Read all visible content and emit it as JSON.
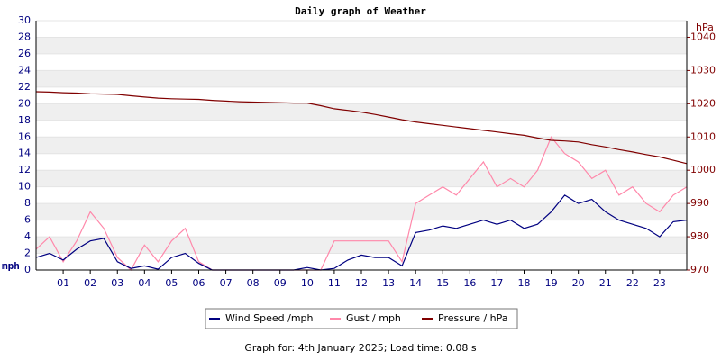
{
  "chart_data": {
    "type": "line",
    "title": "Daily graph of Weather",
    "y_label": "mph",
    "y2_label": "hPa",
    "x": [
      0,
      0.5,
      1,
      1.5,
      2,
      2.5,
      3,
      3.5,
      4,
      4.5,
      5,
      5.5,
      6,
      6.5,
      7,
      7.5,
      8,
      8.5,
      9,
      9.5,
      10,
      10.5,
      11,
      11.5,
      12,
      12.5,
      13,
      13.5,
      14,
      14.5,
      15,
      15.5,
      16,
      16.5,
      17,
      17.5,
      18,
      18.5,
      19,
      19.5,
      20,
      20.5,
      21,
      21.5,
      22,
      22.5,
      23,
      23.5,
      24
    ],
    "xlim": [
      0,
      24
    ],
    "xticks": [
      {
        "value": 1,
        "label": "01"
      },
      {
        "value": 2,
        "label": "02"
      },
      {
        "value": 3,
        "label": "03"
      },
      {
        "value": 4,
        "label": "04"
      },
      {
        "value": 5,
        "label": "05"
      },
      {
        "value": 6,
        "label": "06"
      },
      {
        "value": 7,
        "label": "07"
      },
      {
        "value": 8,
        "label": "08"
      },
      {
        "value": 9,
        "label": "09"
      },
      {
        "value": 10,
        "label": "10"
      },
      {
        "value": 11,
        "label": "11"
      },
      {
        "value": 12,
        "label": "12"
      },
      {
        "value": 13,
        "label": "13"
      },
      {
        "value": 14,
        "label": "14"
      },
      {
        "value": 15,
        "label": "15"
      },
      {
        "value": 16,
        "label": "16"
      },
      {
        "value": 17,
        "label": "17"
      },
      {
        "value": 18,
        "label": "18"
      },
      {
        "value": 19,
        "label": "19"
      },
      {
        "value": 20,
        "label": "20"
      },
      {
        "value": 21,
        "label": "21"
      },
      {
        "value": 22,
        "label": "22"
      },
      {
        "value": 23,
        "label": "23"
      }
    ],
    "ylim": [
      0,
      30
    ],
    "yticks": [
      0,
      2,
      4,
      6,
      8,
      10,
      12,
      14,
      16,
      18,
      20,
      22,
      24,
      26,
      28,
      30
    ],
    "y2lim": [
      970,
      1045
    ],
    "y2ticks": [
      970,
      980,
      990,
      1000,
      1010,
      1020,
      1030,
      1040
    ],
    "grid": true,
    "series": [
      {
        "name": "Wind Speed /mph",
        "color": "#000080",
        "values": [
          1.5,
          2,
          1.2,
          2.5,
          3.5,
          3.8,
          1,
          0.2,
          0.5,
          0.1,
          1.5,
          2,
          0.8,
          0,
          0,
          0,
          0,
          0,
          0,
          0,
          0.3,
          0,
          0.2,
          1.2,
          1.8,
          1.5,
          1.5,
          0.5,
          4.5,
          4.8,
          5.3,
          5,
          5.5,
          6,
          5.5,
          6,
          5,
          5.5,
          7,
          9,
          8,
          8.5,
          7,
          6,
          5.5,
          5,
          4,
          5.8,
          6
        ]
      },
      {
        "name": "Gust / mph",
        "color": "#ff88aa",
        "values": [
          2.5,
          4,
          1,
          3.5,
          7,
          5,
          1.5,
          0,
          3,
          1,
          3.5,
          5,
          1,
          0,
          0,
          0,
          0,
          0,
          0,
          0,
          0,
          0,
          3.5,
          3.5,
          3.5,
          3.5,
          3.5,
          1,
          8,
          9,
          10,
          9,
          11,
          13,
          10,
          11,
          10,
          12,
          16,
          14,
          13,
          11,
          12,
          9,
          10,
          8,
          7,
          9,
          10
        ]
      },
      {
        "name": "Pressure / hPa",
        "color": "#800000",
        "axis": "y2",
        "values": [
          1023.6,
          1023.5,
          1023.3,
          1023.2,
          1023,
          1022.9,
          1022.8,
          1022.4,
          1022,
          1021.7,
          1021.5,
          1021.4,
          1021.3,
          1021,
          1020.8,
          1020.6,
          1020.5,
          1020.4,
          1020.3,
          1020.2,
          1020.2,
          1019.4,
          1018.5,
          1018,
          1017.5,
          1016.8,
          1016,
          1015.2,
          1014.5,
          1014,
          1013.5,
          1013,
          1012.5,
          1012,
          1011.5,
          1011,
          1010.5,
          1009.7,
          1009,
          1008.8,
          1008.5,
          1007.7,
          1007,
          1006.2,
          1005.5,
          1004.7,
          1004,
          1003,
          1002
        ]
      }
    ],
    "footer": "Graph for: 4th January 2025; Load time: 0.08 s"
  }
}
